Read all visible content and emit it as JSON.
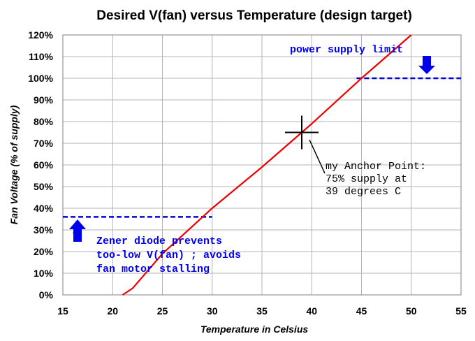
{
  "chart_data": {
    "type": "line",
    "title": "Desired V(fan) versus Temperature  (design target)",
    "xlabel": "Temperature in Celsius",
    "ylabel": "Fan Voltage  (% of supply)",
    "xlim": [
      15,
      55
    ],
    "ylim": [
      0,
      120
    ],
    "x_ticks": [
      "15",
      "20",
      "25",
      "30",
      "35",
      "40",
      "45",
      "50",
      "55"
    ],
    "y_ticks": [
      "0%",
      "10%",
      "20%",
      "30%",
      "40%",
      "50%",
      "60%",
      "70%",
      "80%",
      "90%",
      "100%",
      "110%",
      "120%"
    ],
    "grid": true,
    "series": [
      {
        "color": "#ee0000",
        "x": [
          21,
          22,
          25,
          30,
          35,
          39,
          40,
          45,
          50
        ],
        "y": [
          0,
          3,
          19,
          40,
          59,
          75,
          79,
          100,
          120
        ]
      }
    ],
    "reference_lines": [
      {
        "color": "#0000dd",
        "y": 100,
        "x_from": 44.5,
        "x_to": 55
      },
      {
        "color": "#0000dd",
        "y": 36,
        "x_from": 15,
        "x_to": 30
      }
    ],
    "anchor_point": {
      "x": 39,
      "y": 75
    },
    "annotations": {
      "power_limit": "power supply limit",
      "zener": [
        "Zener diode prevents",
        "too-low V(fan) ; avoids",
        "fan motor stalling"
      ],
      "anchor": [
        "my Anchor Point:",
        "75% supply at",
        "39 degrees C"
      ]
    },
    "colors": {
      "line": "#ee0000",
      "dashed": "#0000dd",
      "arrow": "#0000ee",
      "grid": "#b4b4b4"
    }
  }
}
